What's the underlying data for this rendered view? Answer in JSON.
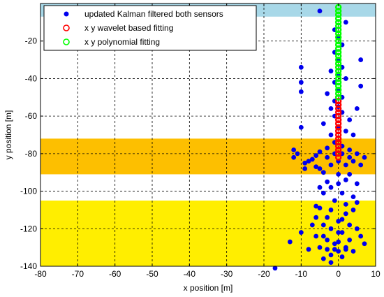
{
  "chart_data": {
    "type": "scatter",
    "xlabel": "x position [m]",
    "ylabel": "y position [m]",
    "xlim": [
      -80,
      10
    ],
    "ylim": [
      -140,
      0
    ],
    "xticks": [
      -80,
      -70,
      -60,
      -50,
      -40,
      -30,
      -20,
      -10,
      0,
      10
    ],
    "yticks": [
      -20,
      -40,
      -60,
      -80,
      -100,
      -120,
      -140
    ],
    "grid": true,
    "legend_position": "top-left",
    "bands": [
      {
        "y_from": 0,
        "y_to": -7,
        "color": "#a8d8e8"
      },
      {
        "y_from": -72,
        "y_to": -91,
        "color": "#fdbf00"
      },
      {
        "y_from": -105,
        "y_to": -140,
        "color": "#ffee00"
      }
    ],
    "series": [
      {
        "name": "updated Kalman filtered both sensors",
        "marker": "filled-dot",
        "color": "#0000ee",
        "points": [
          [
            -5,
            -4
          ],
          [
            2,
            -10
          ],
          [
            -1,
            -14
          ],
          [
            0,
            -18
          ],
          [
            1,
            -22
          ],
          [
            -1,
            -26
          ],
          [
            0,
            -30
          ],
          [
            1,
            -34
          ],
          [
            -2,
            -36
          ],
          [
            0,
            -38
          ],
          [
            2,
            -40
          ],
          [
            -1,
            -42
          ],
          [
            0,
            -46
          ],
          [
            -3,
            -48
          ],
          [
            1,
            -50
          ],
          [
            -1,
            -52
          ],
          [
            0,
            -55
          ],
          [
            -2,
            -56
          ],
          [
            1,
            -58
          ],
          [
            -1,
            -60
          ],
          [
            3,
            -62
          ],
          [
            -4,
            -64
          ],
          [
            0,
            -66
          ],
          [
            2,
            -68
          ],
          [
            -2,
            -70
          ],
          [
            -10,
            -34
          ],
          [
            -10,
            -42
          ],
          [
            6,
            -44
          ],
          [
            6,
            -30
          ],
          [
            -10,
            -47
          ],
          [
            -10,
            -66
          ],
          [
            5,
            -56
          ],
          [
            4,
            -70
          ],
          [
            -1,
            -74
          ],
          [
            1,
            -76
          ],
          [
            -3,
            -77
          ],
          [
            3,
            -78
          ],
          [
            -5,
            -79
          ],
          [
            5,
            -80
          ],
          [
            -6,
            -81
          ],
          [
            7,
            -82
          ],
          [
            -7,
            -83
          ],
          [
            -8,
            -84
          ],
          [
            -9,
            -85
          ],
          [
            -12,
            -78
          ],
          [
            -11,
            -80
          ],
          [
            -12,
            -82
          ],
          [
            -9,
            -88
          ],
          [
            -5,
            -88
          ],
          [
            -2,
            -86
          ],
          [
            2,
            -86
          ],
          [
            4,
            -84
          ],
          [
            6,
            -86
          ],
          [
            -3,
            -82
          ],
          [
            3,
            -82
          ],
          [
            0,
            -84
          ],
          [
            -1,
            -80
          ],
          [
            1,
            -80
          ],
          [
            -4,
            -90
          ],
          [
            0,
            -91
          ],
          [
            3,
            -91
          ],
          [
            -6,
            -87
          ],
          [
            -3,
            -95
          ],
          [
            0,
            -96
          ],
          [
            2,
            -94
          ],
          [
            -2,
            -98
          ],
          [
            -5,
            -98
          ],
          [
            5,
            -96
          ],
          [
            -4,
            -101
          ],
          [
            1,
            -101
          ],
          [
            4,
            -103
          ],
          [
            -1,
            -105
          ],
          [
            2,
            -107
          ],
          [
            -5,
            -109
          ],
          [
            -2,
            -110
          ],
          [
            2,
            -112
          ],
          [
            4,
            -110
          ],
          [
            -6,
            -114
          ],
          [
            0,
            -116
          ],
          [
            -4,
            -118
          ],
          [
            3,
            -118
          ],
          [
            -2,
            -120
          ],
          [
            1,
            -122
          ],
          [
            5,
            -120
          ],
          [
            -6,
            -124
          ],
          [
            -3,
            -126
          ],
          [
            0,
            -127
          ],
          [
            3,
            -126
          ],
          [
            -5,
            -130
          ],
          [
            -1,
            -131
          ],
          [
            2,
            -130
          ],
          [
            -2,
            -134
          ],
          [
            1,
            -135
          ],
          [
            -4,
            -136
          ],
          [
            -17,
            -141
          ],
          [
            -13,
            -127
          ],
          [
            -10,
            -122
          ],
          [
            -7,
            -118
          ],
          [
            6,
            -124
          ],
          [
            -8,
            -131
          ],
          [
            -3,
            -131
          ],
          [
            2,
            -131
          ],
          [
            -1,
            -128
          ],
          [
            0,
            -132
          ],
          [
            4,
            -132
          ],
          [
            -2,
            -138
          ],
          [
            7,
            -128
          ],
          [
            -6,
            -108
          ],
          [
            5,
            -106
          ],
          [
            -3,
            -114
          ],
          [
            1,
            -115
          ],
          [
            -4,
            -124
          ],
          [
            0,
            -122
          ]
        ]
      },
      {
        "name": "x y wavelet based fitting",
        "marker": "open-circle",
        "color": "#ff0000",
        "points": [
          [
            0,
            -50
          ],
          [
            0,
            -52
          ],
          [
            0,
            -54
          ],
          [
            0,
            -56
          ],
          [
            0,
            -58
          ],
          [
            0,
            -60
          ],
          [
            0,
            -62
          ],
          [
            0,
            -64
          ],
          [
            0,
            -66
          ],
          [
            0,
            -68
          ],
          [
            0,
            -70
          ],
          [
            0,
            -72
          ],
          [
            0,
            -74
          ],
          [
            0,
            -76
          ],
          [
            0,
            -78
          ],
          [
            0,
            -80
          ],
          [
            0,
            -82
          ]
        ]
      },
      {
        "name": "x y polynomial fitting",
        "marker": "open-circle",
        "color": "#00ff00",
        "points": [
          [
            0,
            -2
          ],
          [
            0,
            -4
          ],
          [
            0,
            -6
          ],
          [
            0,
            -8
          ],
          [
            0,
            -10
          ],
          [
            0,
            -12
          ],
          [
            0,
            -14
          ],
          [
            0,
            -16
          ],
          [
            0,
            -18
          ],
          [
            0,
            -20
          ],
          [
            0,
            -22
          ],
          [
            0,
            -24
          ],
          [
            0,
            -26
          ],
          [
            0,
            -28
          ],
          [
            0,
            -30
          ],
          [
            0,
            -32
          ],
          [
            0,
            -34
          ],
          [
            0,
            -36
          ],
          [
            0,
            -38
          ],
          [
            0,
            -40
          ],
          [
            0,
            -42
          ],
          [
            0,
            -44
          ],
          [
            0,
            -46
          ],
          [
            0,
            -48
          ],
          [
            0,
            -50
          ]
        ]
      }
    ]
  }
}
